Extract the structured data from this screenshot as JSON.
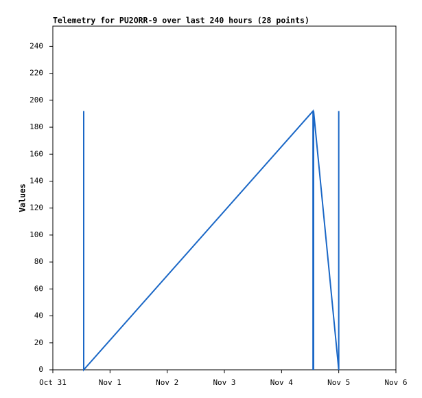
{
  "chart_data": {
    "type": "line",
    "title": "Telemetry for PU2ORR-9 over last 240 hours (28 points)",
    "y_label": "Values",
    "x": [
      0.54,
      0.54,
      0.54,
      0.54,
      4.55,
      4.55,
      4.55,
      4.55,
      4.55,
      4.55,
      4.55,
      4.55,
      4.55,
      4.55,
      4.55,
      4.56,
      4.56,
      4.56,
      4.56,
      5.0,
      5.0,
      5.0,
      5.0,
      5.0,
      5.0,
      5.0,
      5.0,
      5.0
    ],
    "series": [
      {
        "color": "#1a67c6",
        "values": [
          192,
          0,
          97,
          0,
          192,
          0,
          192,
          0,
          192,
          0,
          192,
          0,
          192,
          0,
          192,
          0,
          192,
          0,
          192,
          0,
          192,
          0,
          192,
          0,
          192,
          0,
          192,
          192
        ]
      }
    ],
    "xlim": [
      0,
      6
    ],
    "xticks": [
      {
        "value": 0,
        "label": "Oct 31"
      },
      {
        "value": 1,
        "label": "Nov 1"
      },
      {
        "value": 2,
        "label": "Nov 2"
      },
      {
        "value": 3,
        "label": "Nov 3"
      },
      {
        "value": 4,
        "label": "Nov 4"
      },
      {
        "value": 5,
        "label": "Nov 5"
      },
      {
        "value": 6,
        "label": "Nov 6"
      }
    ],
    "ylim": [
      0,
      255
    ],
    "yticks": [
      0,
      20,
      40,
      60,
      80,
      100,
      120,
      140,
      160,
      180,
      200,
      220,
      240
    ],
    "grid": false
  }
}
